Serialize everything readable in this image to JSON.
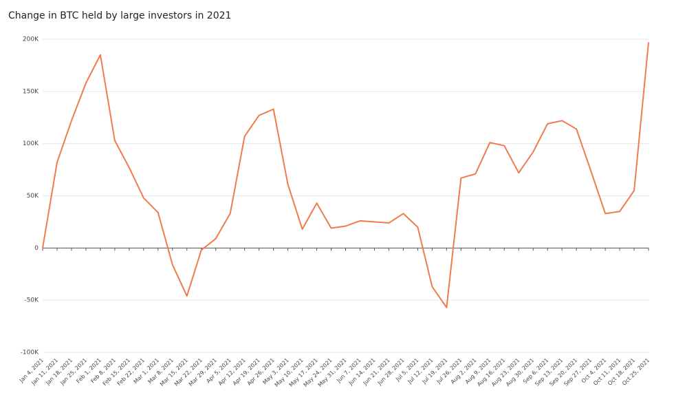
{
  "chart_data": {
    "type": "line",
    "title": "Change in BTC held by large investors in 2021",
    "categories": [
      "Jan 4, 2021",
      "Jan 11, 2021",
      "Jan 18, 2021",
      "Jan 25, 2021",
      "Feb 1, 2021",
      "Feb 8, 2021",
      "Feb 15, 2021",
      "Feb 22, 2021",
      "Mar 1, 2021",
      "Mar 8, 2021",
      "Mar 15, 2021",
      "Mar 22, 2021",
      "Mar 29, 2021",
      "Apr 5, 2021",
      "Apr 12, 2021",
      "Apr 19, 2021",
      "Apr 26, 2021",
      "May 3, 2021",
      "May 10, 2021",
      "May 17, 2021",
      "May 24, 2021",
      "May 31, 2021",
      "Jun 7, 2021",
      "Jun 14, 2021",
      "Jun 21, 2021",
      "Jun 28, 2021",
      "Jul 5, 2021",
      "Jul 12, 2021",
      "Jul 19, 2021",
      "Jul 26, 2021",
      "Aug 2, 2021",
      "Aug 9, 2021",
      "Aug 16, 2021",
      "Aug 23, 2021",
      "Aug 30, 2021",
      "Sep 6, 2021",
      "Sep 13, 2021",
      "Sep 20, 2021",
      "Sep 27, 2021",
      "Oct 4, 2021",
      "Oct 11, 2021",
      "Oct 18, 2021",
      "Oct 25, 2021"
    ],
    "values": [
      0,
      82000,
      122000,
      158000,
      185000,
      103000,
      77000,
      48000,
      34000,
      -16000,
      -46000,
      -2000,
      9000,
      33000,
      107000,
      127000,
      133000,
      61000,
      18000,
      43000,
      19000,
      21000,
      26000,
      25000,
      24000,
      33000,
      20000,
      -37000,
      -57000,
      67000,
      71000,
      101000,
      98000,
      72000,
      92000,
      119000,
      122000,
      114000,
      74000,
      33000,
      35000,
      55000,
      197000
    ],
    "color": "#f07a4a",
    "ylim": [
      -100000,
      200000
    ],
    "yticks": [
      {
        "value": -100000,
        "label": "-100K"
      },
      {
        "value": -50000,
        "label": "-50K"
      },
      0,
      {
        "value": 50000,
        "label": "50K"
      },
      {
        "value": 100000,
        "label": "100K"
      },
      {
        "value": 150000,
        "label": "150K"
      },
      {
        "value": 200000,
        "label": "200K"
      }
    ],
    "grid": true
  }
}
